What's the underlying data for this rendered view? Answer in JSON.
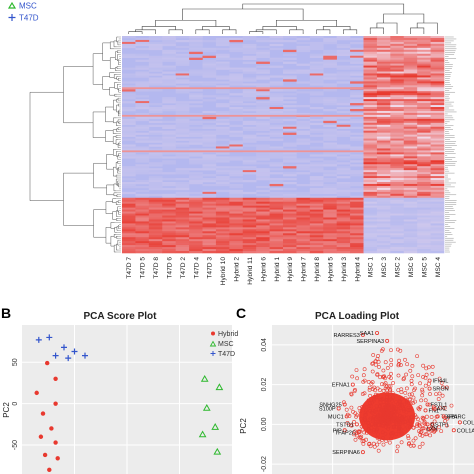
{
  "top_legend": [
    {
      "label": "MSC",
      "marker": "triangle",
      "color": "#2db82d"
    },
    {
      "label": "T47D",
      "marker": "plus",
      "color": "#3355cc"
    }
  ],
  "heatmap": {
    "column_labels": [
      "T47D 7",
      "T47D 5",
      "T47D 8",
      "T47D 6",
      "T47D 2",
      "T47D 4",
      "T47D 3",
      "Hybrid 10",
      "Hybrid 2",
      "Hybrid 11",
      "Hybrid 6",
      "Hybrid 1",
      "Hybrid 9",
      "Hybrid 7",
      "Hybrid 8",
      "Hybrid 5",
      "Hybrid 3",
      "Hybrid 4",
      "MSC 1",
      "MSC 3",
      "MSC 2",
      "MSC 6",
      "MSC 5",
      "MSC 4"
    ],
    "colors": {
      "low": "#a9b2f0",
      "mid": "#f2dcea",
      "high": "#e8392f"
    }
  },
  "panel_b": {
    "letter": "B",
    "title": "PCA Score Plot",
    "ylabel": "PC2",
    "yticks": [
      "50",
      "0",
      "-50"
    ],
    "legend": [
      {
        "label": "Hybrid",
        "marker": "circle",
        "color": "#e8392f"
      },
      {
        "label": "MSC",
        "marker": "triangle",
        "color": "#2db82d"
      },
      {
        "label": "T47D",
        "marker": "plus",
        "color": "#3355cc"
      }
    ]
  },
  "panel_c": {
    "letter": "C",
    "title": "PCA Loading Plot",
    "ylabel": "PC2",
    "yticks": [
      "0.04",
      "0.02",
      "0.00",
      "-0.02"
    ],
    "gene_labels": [
      "RARRES3",
      "SAA1",
      "SERPINA3",
      "EFNA1",
      "SNHG25",
      "S100P",
      "MUC1",
      "TSTD1",
      "PIP",
      "TFAP2C",
      "SERPINA6",
      "IFI44L",
      "SRGN",
      "FSTL1",
      "FN1",
      "AXL",
      "TGFBI",
      "SPARC",
      "GSTP1",
      "LXN",
      "COL1A2",
      "COL1A1"
    ]
  },
  "chart_data": [
    {
      "type": "heatmap",
      "title": "",
      "columns": [
        "T47D 7",
        "T47D 5",
        "T47D 8",
        "T47D 6",
        "T47D 2",
        "T47D 4",
        "T47D 3",
        "Hybrid 10",
        "Hybrid 2",
        "Hybrid 11",
        "Hybrid 6",
        "Hybrid 1",
        "Hybrid 9",
        "Hybrid 7",
        "Hybrid 8",
        "Hybrid 5",
        "Hybrid 3",
        "Hybrid 4",
        "MSC 1",
        "MSC 3",
        "MSC 2",
        "MSC 6",
        "MSC 5",
        "MSC 4"
      ],
      "column_groups": [
        {
          "name": "T47D",
          "count": 7
        },
        {
          "name": "Hybrid",
          "count": 11
        },
        {
          "name": "MSC",
          "count": 6
        }
      ]
    },
    {
      "type": "scatter",
      "title": "PCA Score Plot",
      "xlabel": "",
      "ylabel": "PC2",
      "ylim": [
        -85,
        95
      ],
      "xlim": [
        0,
        100
      ],
      "series": [
        {
          "name": "T47D",
          "marker": "plus",
          "color": "#3355cc",
          "x": [
            8,
            13,
            20,
            16,
            22,
            25,
            30
          ],
          "y": [
            77,
            80,
            68,
            58,
            55,
            63,
            58
          ]
        },
        {
          "name": "Hybrid",
          "marker": "circle",
          "color": "#e8392f",
          "x": [
            12,
            16,
            7,
            16,
            10,
            14,
            9,
            16,
            11,
            17,
            13
          ],
          "y": [
            49,
            30,
            13,
            0,
            -12,
            -30,
            -40,
            -47,
            -62,
            -66,
            -80
          ]
        },
        {
          "name": "MSC",
          "marker": "triangle",
          "color": "#2db82d",
          "x": [
            87,
            94,
            88,
            92,
            86,
            93
          ],
          "y": [
            30,
            20,
            -5,
            -28,
            -37,
            -58
          ]
        }
      ]
    },
    {
      "type": "scatter",
      "title": "PCA Loading Plot",
      "xlabel": "",
      "ylabel": "PC2",
      "ylim": [
        -0.025,
        0.05
      ],
      "gene_points": [
        {
          "gene": "RARRES3",
          "x": 0.45,
          "y": 0.045
        },
        {
          "gene": "SAA1",
          "x": 0.52,
          "y": 0.046
        },
        {
          "gene": "SERPINA3",
          "x": 0.57,
          "y": 0.042
        },
        {
          "gene": "EFNA1",
          "x": 0.4,
          "y": 0.02
        },
        {
          "gene": "SNHG25",
          "x": 0.36,
          "y": 0.01
        },
        {
          "gene": "S100P",
          "x": 0.33,
          "y": 0.008
        },
        {
          "gene": "MUC1",
          "x": 0.37,
          "y": 0.004
        },
        {
          "gene": "TSTD1",
          "x": 0.42,
          "y": 0.0
        },
        {
          "gene": "PIP",
          "x": 0.36,
          "y": -0.003
        },
        {
          "gene": "TFAP2C",
          "x": 0.43,
          "y": -0.004
        },
        {
          "gene": "SERPINA6",
          "x": 0.45,
          "y": -0.014
        },
        {
          "gene": "IFI44L",
          "x": 0.78,
          "y": 0.022
        },
        {
          "gene": "SRGN",
          "x": 0.78,
          "y": 0.018
        },
        {
          "gene": "FSTL1",
          "x": 0.77,
          "y": 0.01
        },
        {
          "gene": "FN1",
          "x": 0.76,
          "y": 0.007
        },
        {
          "gene": "AXL",
          "x": 0.8,
          "y": 0.008
        },
        {
          "gene": "TGFBI",
          "x": 0.82,
          "y": 0.004
        },
        {
          "gene": "SPARC",
          "x": 0.85,
          "y": 0.004
        },
        {
          "gene": "GSTP1",
          "x": 0.77,
          "y": 0.0
        },
        {
          "gene": "LXN",
          "x": 0.75,
          "y": -0.002
        },
        {
          "gene": "COL1A2",
          "x": 0.93,
          "y": 0.001
        },
        {
          "gene": "COL1A1",
          "x": 0.9,
          "y": -0.003
        }
      ]
    }
  ]
}
